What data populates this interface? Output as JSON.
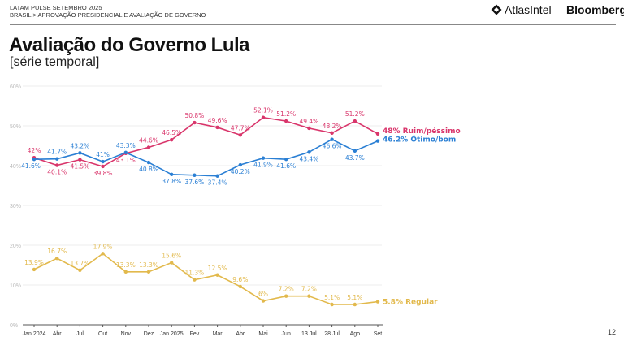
{
  "header": {
    "line1": "LATAM PULSE SETEMBRO 2025",
    "line2": "BRASIL > APROVAÇÃO PRESIDENCIAL E AVALIAÇÃO DE GOVERNO",
    "logo_atlas": "AtlasIntel",
    "logo_bloomberg": "Bloomberg"
  },
  "title": "Avaliação do Governo Lula",
  "subtitle": "[série temporal]",
  "page_number": "12",
  "chart_data": {
    "type": "line",
    "categories": [
      "Jan 2024",
      "Abr",
      "Jul",
      "Out",
      "Nov",
      "Dez",
      "Jan 2025",
      "Fev",
      "Mar",
      "Abr",
      "Mai",
      "Jun",
      "13 Jul",
      "28 Jul",
      "Ago",
      "Set"
    ],
    "ylim": [
      0,
      60
    ],
    "yticks": [
      "0%",
      "10%",
      "20%",
      "30%",
      "40%",
      "50%",
      "60%"
    ],
    "grid": true,
    "series": [
      {
        "name": "Ruim/péssimo",
        "color": "#d9356b",
        "end_label": "48% Ruim/péssimo",
        "values": [
          42,
          40.1,
          41.5,
          39.8,
          43.1,
          44.6,
          46.5,
          50.8,
          49.6,
          47.7,
          52.1,
          51.2,
          49.4,
          48.2,
          51.2,
          48
        ]
      },
      {
        "name": "Ótimo/bom",
        "color": "#2a7fd4",
        "end_label": "46.2% Ótimo/bom",
        "values": [
          41.6,
          41.7,
          43.2,
          41,
          43.3,
          40.8,
          37.8,
          37.6,
          37.4,
          40.2,
          41.9,
          41.6,
          43.4,
          46.6,
          43.7,
          46.2
        ]
      },
      {
        "name": "Regular",
        "color": "#e2b94c",
        "end_label": "5.8% Regular",
        "values": [
          13.9,
          16.7,
          13.7,
          17.9,
          13.3,
          13.3,
          15.6,
          11.3,
          12.5,
          9.6,
          6,
          7.2,
          7.2,
          5.1,
          5.1,
          5.8
        ]
      }
    ]
  }
}
